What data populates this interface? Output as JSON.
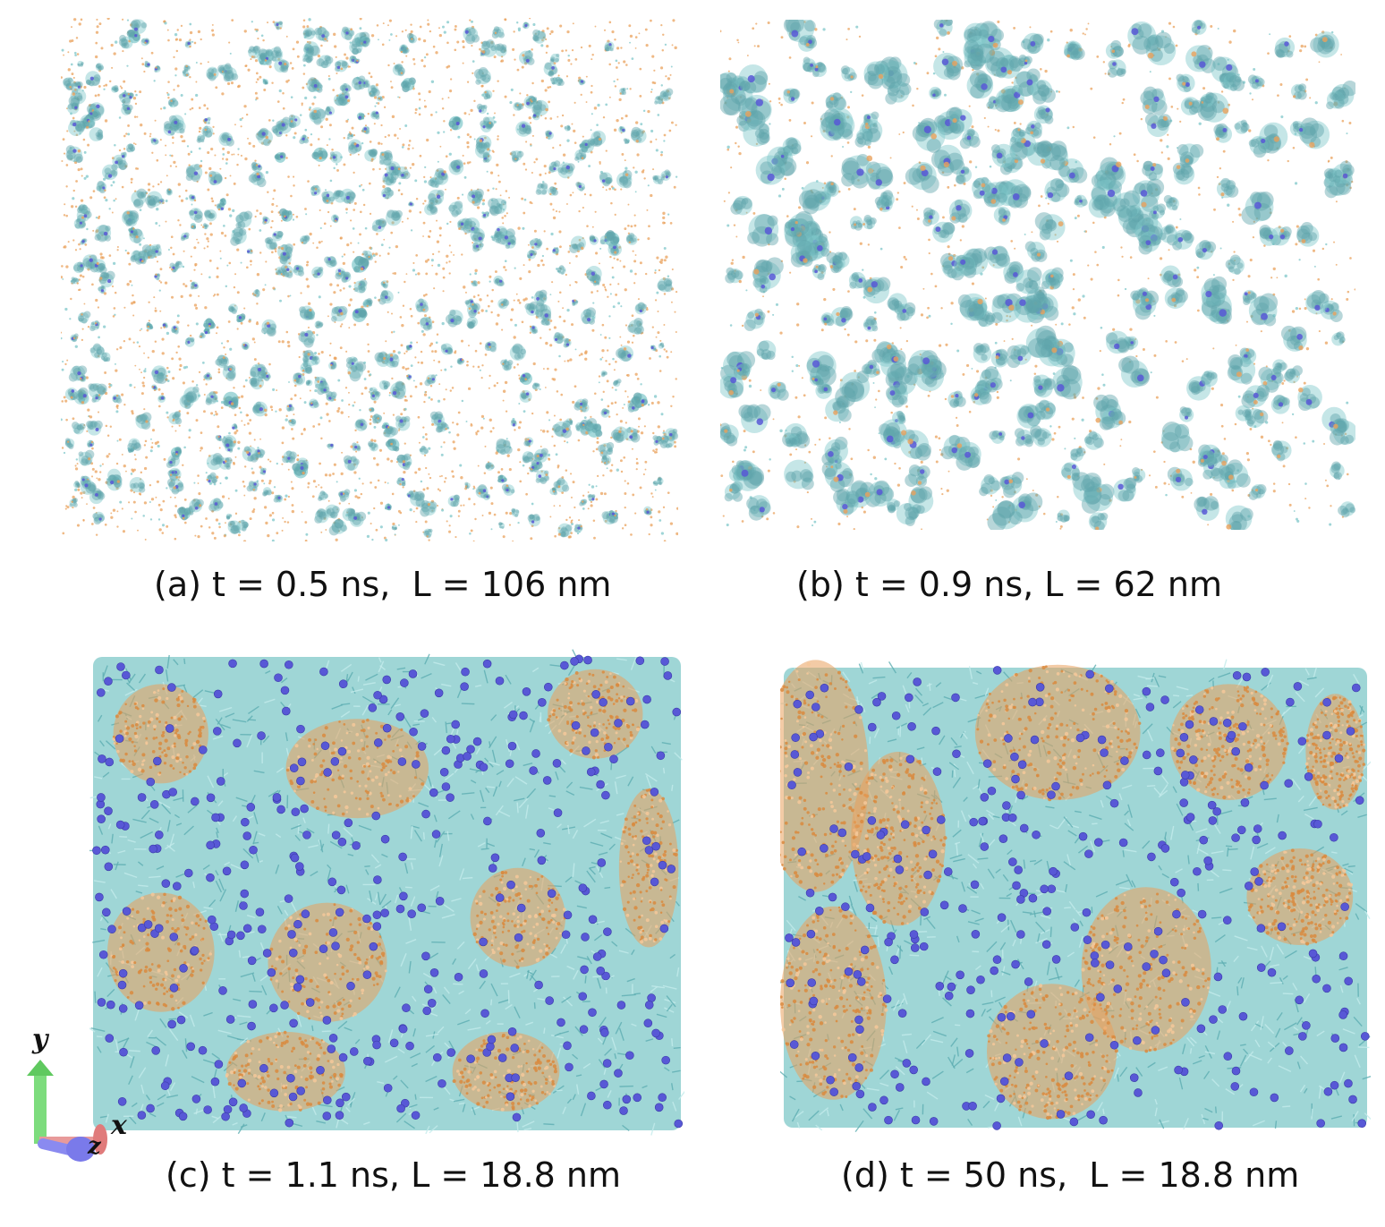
{
  "panels": [
    {
      "id": "a",
      "caption": "(a) t = 0.5 ns,  L = 106 nm",
      "style": "sparse-small-clusters"
    },
    {
      "id": "b",
      "caption": "(b) t = 0.9 ns, L = 62 nm",
      "style": "sparse-large-clusters"
    },
    {
      "id": "c",
      "caption": "(c) t = 1.1 ns, L = 18.8 nm",
      "style": "dense-mixed"
    },
    {
      "id": "d",
      "caption": "(d) t = 50 ns,  L = 18.8 nm",
      "style": "dense-domains"
    }
  ],
  "axes_triad": {
    "y_label": "y",
    "x_label": "x",
    "z_label": "z"
  },
  "colors": {
    "cyan_chains": "#7fc7c9",
    "orange_chains": "#e9a15c",
    "blue_beads": "#5858d6",
    "y_axis": "#7ddc7d",
    "x_axis": "#e89a9a",
    "z_axis": "#8a8af0"
  }
}
